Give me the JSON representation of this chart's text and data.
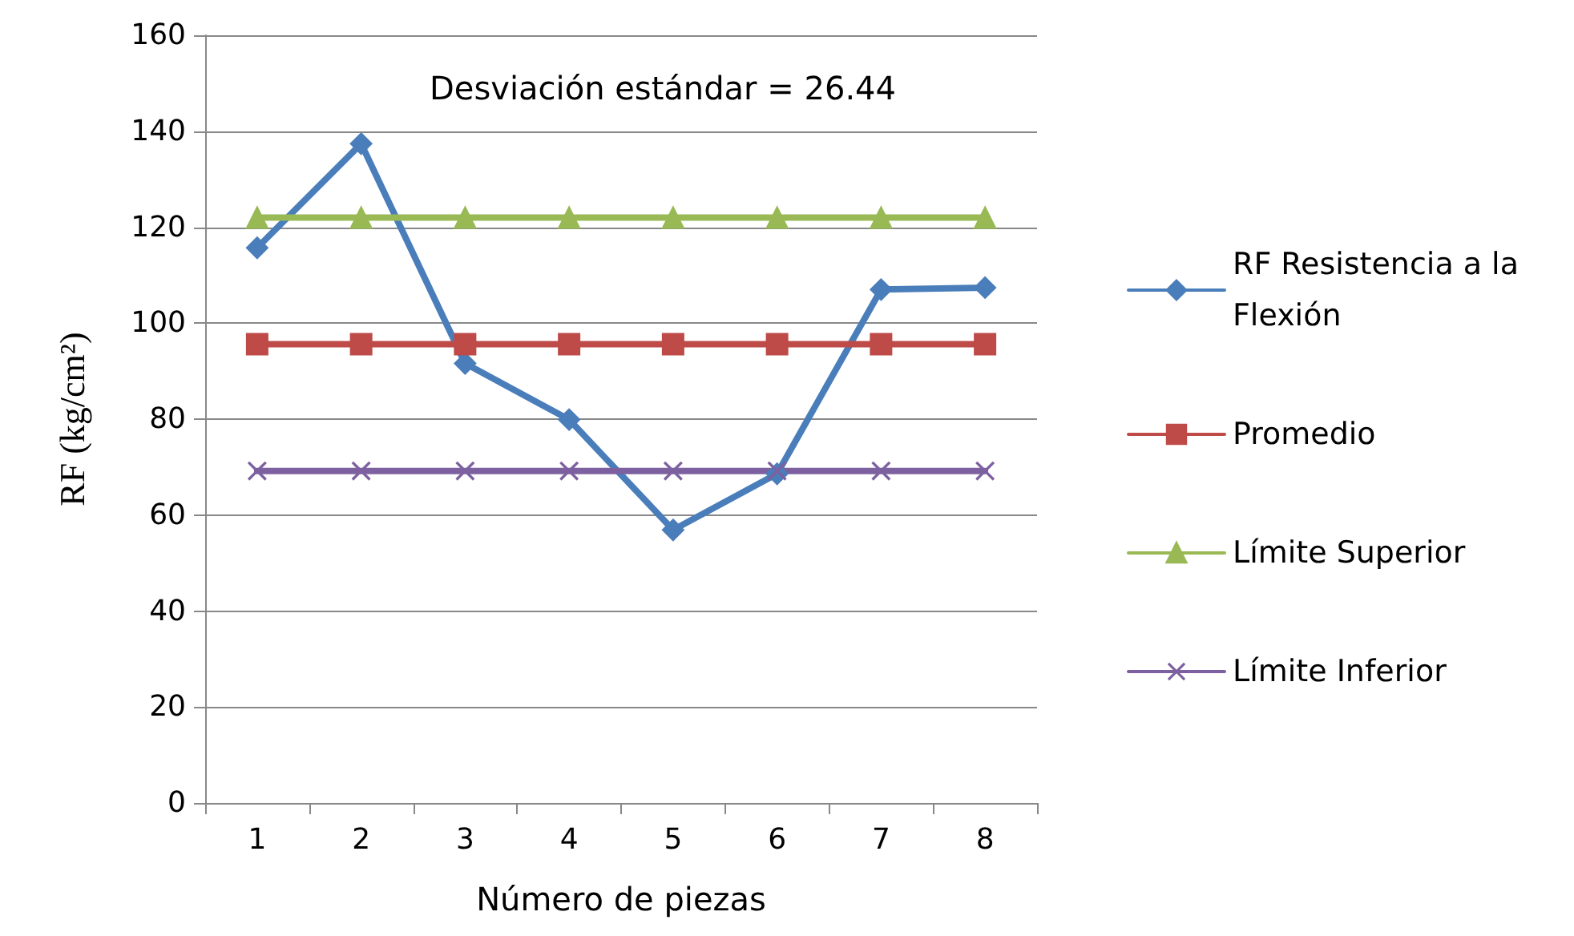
{
  "chart_data": {
    "type": "line",
    "xlabel": "Número de piezas",
    "ylabel": "RF (kg/cm²)",
    "categories": [
      "1",
      "2",
      "3",
      "4",
      "5",
      "6",
      "7",
      "8"
    ],
    "series": [
      {
        "name": "RF Resistencia a la Flexión",
        "color": "#4a7ebb",
        "marker": "diamond",
        "values": [
          115.7,
          137.4,
          91.6,
          79.9,
          56.9,
          68.6,
          107.0,
          107.4
        ]
      },
      {
        "name": "Promedio",
        "color": "#be4b48",
        "marker": "square",
        "values": [
          95.6,
          95.6,
          95.6,
          95.6,
          95.6,
          95.6,
          95.6,
          95.6
        ]
      },
      {
        "name": "Límite Superior",
        "color": "#98b954",
        "marker": "triangle",
        "values": [
          122.0,
          122.0,
          122.0,
          122.0,
          122.0,
          122.0,
          122.0,
          122.0
        ]
      },
      {
        "name": "Límite Inferior",
        "color": "#7d60a0",
        "marker": "cross",
        "values": [
          69.2,
          69.2,
          69.2,
          69.2,
          69.2,
          69.2,
          69.2,
          69.2
        ]
      }
    ],
    "annotations": [
      "Desviación estándar = 26.44"
    ],
    "ylim": [
      0,
      160
    ],
    "yticks": [
      0,
      20,
      40,
      60,
      80,
      100,
      120,
      140,
      160
    ],
    "grid": "y",
    "legend": "right",
    "line_style": "solid"
  }
}
